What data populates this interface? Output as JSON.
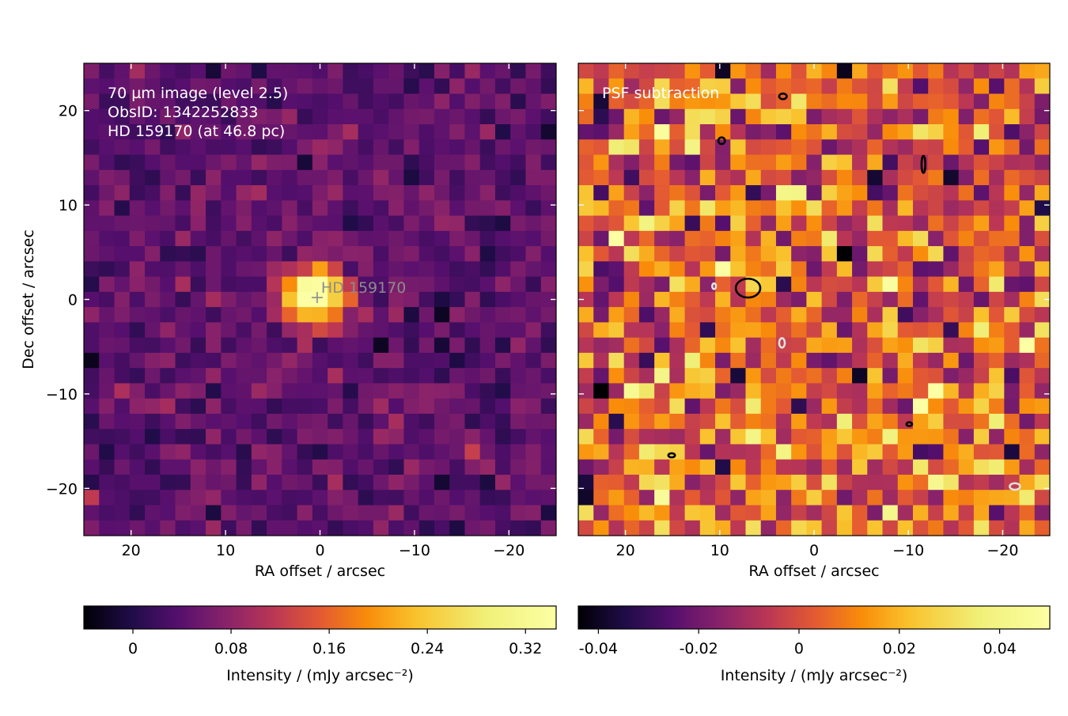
{
  "chart_data": [
    {
      "type": "heatmap",
      "panel": "left",
      "annotation_lines": [
        "70 µm image (level 2.5)",
        "ObsID: 1342252833",
        "HD 159170 (at 46.8 pc)"
      ],
      "marker_label": "HD 159170",
      "marker_position": {
        "ra": 0.3,
        "dec": 0.2
      },
      "xlabel": "RA offset / arcsec",
      "ylabel": "Dec offset / arcsec",
      "xlim": [
        25,
        -25
      ],
      "ylim": [
        -25,
        25
      ],
      "xticks": [
        20,
        10,
        0,
        -10,
        -20
      ],
      "xtick_labels": [
        "20",
        "10",
        "0",
        "−10",
        "−20"
      ],
      "yticks": [
        20,
        10,
        0,
        -10,
        -20
      ],
      "ytick_labels": [
        "20",
        "10",
        "0",
        "−10",
        "−20"
      ],
      "grid": {
        "nx": 31,
        "ny": 31
      },
      "source_peak": {
        "ra": 0.5,
        "dec": 0.5,
        "value": 0.33,
        "sigma_arcsec": 2.2
      },
      "background_level": 0.045,
      "colormap": "inferno",
      "colorbar": {
        "vmin": -0.04,
        "vmax": 0.345,
        "ticks": [
          0,
          0.08,
          0.16,
          0.24,
          0.32
        ],
        "tick_labels": [
          "0",
          "0.08",
          "0.16",
          "0.24",
          "0.32"
        ],
        "label": "Intensity / (mJy arcsec⁻²)"
      }
    },
    {
      "type": "heatmap",
      "panel": "right",
      "annotation_lines": [
        "PSF subtraction"
      ],
      "xlabel": "RA offset / arcsec",
      "xlim": [
        25,
        -25
      ],
      "ylim": [
        -25,
        25
      ],
      "xticks": [
        20,
        10,
        0,
        -10,
        -20
      ],
      "xtick_labels": [
        "20",
        "10",
        "0",
        "−10",
        "−20"
      ],
      "grid": {
        "nx": 31,
        "ny": 31
      },
      "colormap": "inferno",
      "contours": [
        {
          "ra": 7.0,
          "dec": 1.2,
          "rx": 1.3,
          "ry": 1.0,
          "color": "#000000"
        },
        {
          "ra": 9.8,
          "dec": 16.8,
          "rx": 0.35,
          "ry": 0.35,
          "color": "#000000"
        },
        {
          "ra": -11.6,
          "dec": 14.3,
          "rx": 0.2,
          "ry": 0.9,
          "color": "#000000"
        },
        {
          "ra": -10.1,
          "dec": -13.2,
          "rx": 0.3,
          "ry": 0.2,
          "color": "#000000"
        },
        {
          "ra": 15.1,
          "dec": -16.5,
          "rx": 0.35,
          "ry": 0.22,
          "color": "#000000"
        },
        {
          "ra": 3.3,
          "dec": 21.5,
          "rx": 0.4,
          "ry": 0.3,
          "color": "#000000"
        },
        {
          "ra": 10.6,
          "dec": 1.4,
          "rx": 0.2,
          "ry": 0.3,
          "color": "#e0e0e0"
        },
        {
          "ra": 3.4,
          "dec": -4.6,
          "rx": 0.3,
          "ry": 0.5,
          "color": "#e0e0e0"
        },
        {
          "ra": -21.3,
          "dec": -19.8,
          "rx": 0.55,
          "ry": 0.35,
          "color": "#e0e0e0"
        }
      ],
      "colorbar": {
        "vmin": -0.044,
        "vmax": 0.05,
        "ticks": [
          -0.04,
          -0.02,
          0,
          0.02,
          0.04
        ],
        "tick_labels": [
          "-0.04",
          "-0.02",
          "0",
          "0.02",
          "0.04"
        ],
        "label": "Intensity / (mJy arcsec⁻²)"
      }
    }
  ]
}
